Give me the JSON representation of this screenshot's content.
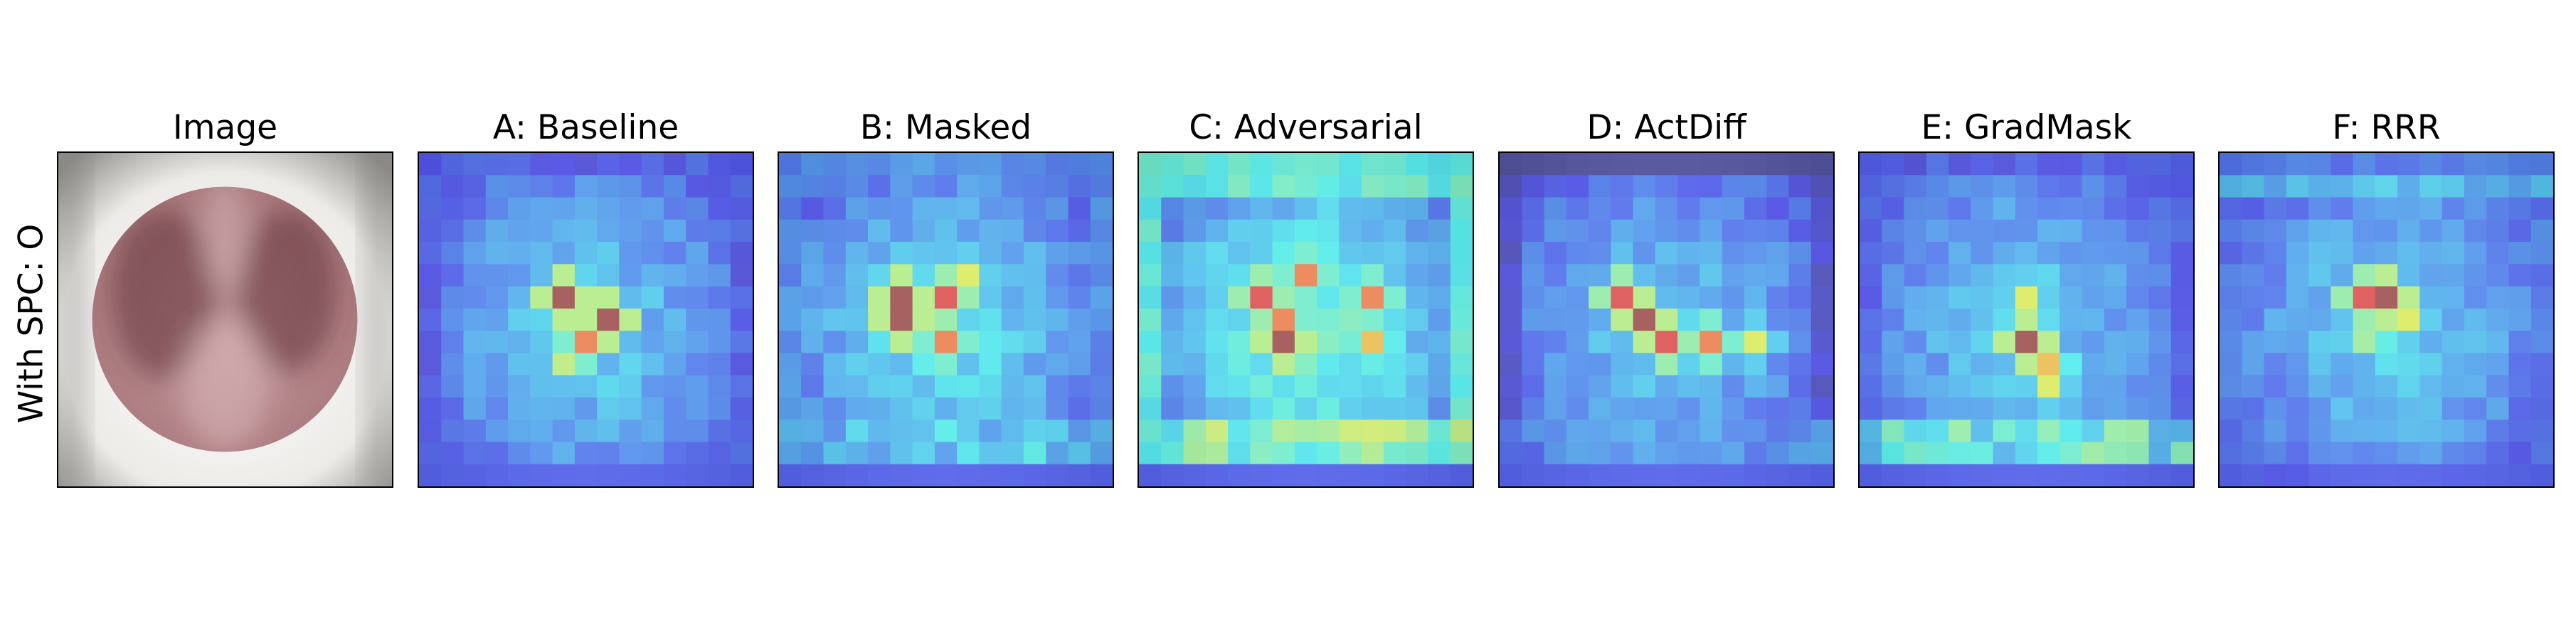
{
  "figure": {
    "row_label": "With SPC: O",
    "panels": [
      {
        "id": "image",
        "title": "Image",
        "kind": "xray"
      },
      {
        "id": "baseline",
        "title": "A: Baseline",
        "kind": "heatmap"
      },
      {
        "id": "masked",
        "title": "B: Masked",
        "kind": "heatmap"
      },
      {
        "id": "adversarial",
        "title": "C: Adversarial",
        "kind": "heatmap"
      },
      {
        "id": "actdiff",
        "title": "D: ActDiff",
        "kind": "heatmap"
      },
      {
        "id": "gradmask",
        "title": "E: GradMask",
        "kind": "heatmap"
      },
      {
        "id": "rrr",
        "title": "F: RRR",
        "kind": "heatmap"
      }
    ]
  }
}
